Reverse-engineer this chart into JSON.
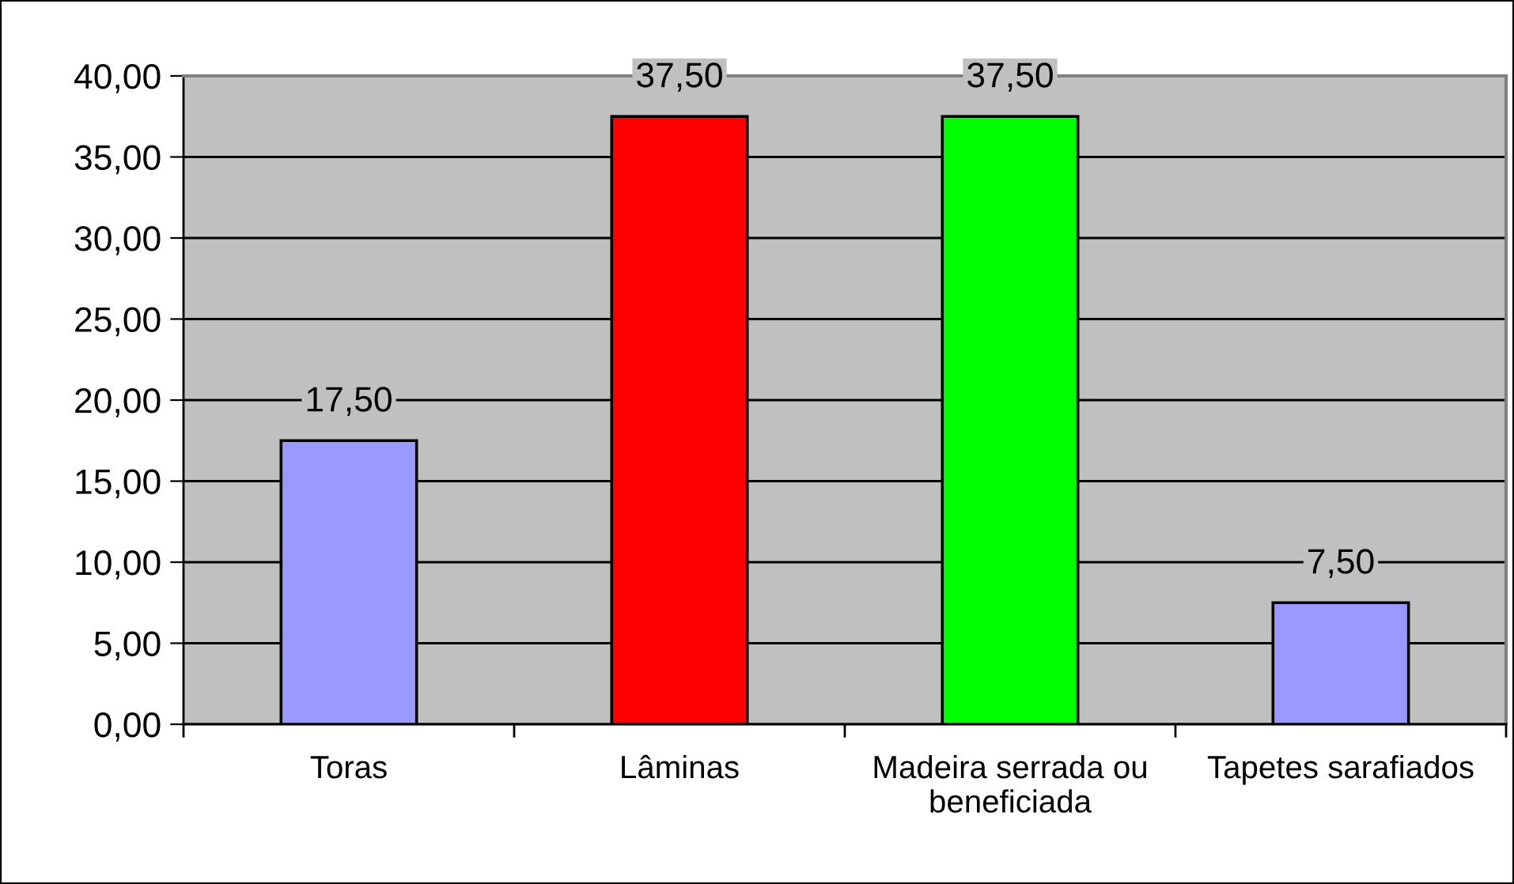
{
  "chart_data": {
    "type": "bar",
    "categories": [
      "Toras",
      "Lâminas",
      "Madeira serrada ou\nbeneficiada",
      "Tapetes sarafiados"
    ],
    "values": [
      17.5,
      37.5,
      37.5,
      7.5
    ],
    "colors": [
      "#9999ff",
      "#ff0000",
      "#00ff00",
      "#9999ff"
    ],
    "value_labels": [
      "17,50",
      "37,50",
      "37,50",
      "7,50"
    ],
    "ylim": [
      0,
      40
    ],
    "yticks": [
      {
        "value": 0,
        "label": "0,00"
      },
      {
        "value": 5,
        "label": "5,00"
      },
      {
        "value": 10,
        "label": "10,00"
      },
      {
        "value": 15,
        "label": "15,00"
      },
      {
        "value": 20,
        "label": "20,00"
      },
      {
        "value": 25,
        "label": "25,00"
      },
      {
        "value": 30,
        "label": "30,00"
      },
      {
        "value": 35,
        "label": "35,00"
      },
      {
        "value": 40,
        "label": "40,00"
      }
    ],
    "grid": "y"
  }
}
